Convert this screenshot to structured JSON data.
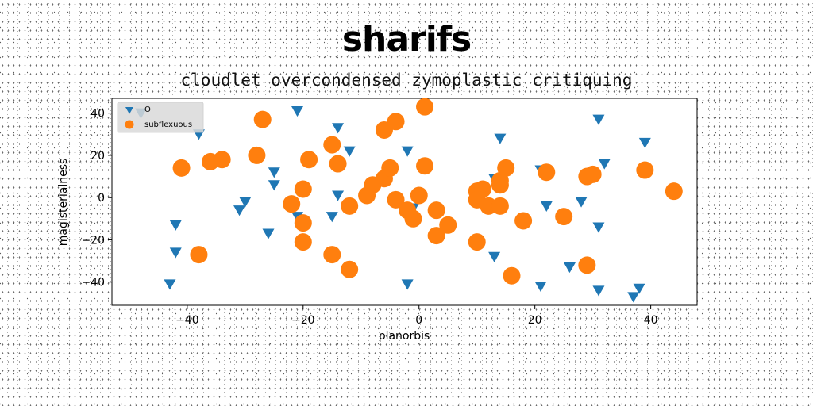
{
  "chart_data": {
    "type": "scatter",
    "title": "sharifs",
    "subtitle": "cloudlet overcondensed zymoplastic critiquing",
    "xlabel": "planorbis",
    "ylabel": "magisterialness",
    "xlim": [
      -53,
      48
    ],
    "ylim": [
      -51,
      47
    ],
    "xticks": [
      -40,
      -20,
      0,
      20,
      40
    ],
    "yticks": [
      -40,
      -20,
      0,
      20,
      40
    ],
    "grid": false,
    "legend_position": "top-left",
    "series": [
      {
        "name": "O",
        "marker": "triangle-down",
        "color": "#1f77b4",
        "points": [
          [
            -48,
            40
          ],
          [
            -38,
            30
          ],
          [
            -42,
            -13
          ],
          [
            -42,
            -26
          ],
          [
            -43,
            -41
          ],
          [
            -21,
            41
          ],
          [
            -14,
            33
          ],
          [
            -12,
            22
          ],
          [
            -25,
            12
          ],
          [
            -25,
            6
          ],
          [
            -30,
            -2
          ],
          [
            -31,
            -6
          ],
          [
            -26,
            -17
          ],
          [
            -21,
            -9
          ],
          [
            -15,
            -9
          ],
          [
            -14,
            1
          ],
          [
            -2,
            22
          ],
          [
            -2,
            -41
          ],
          [
            -1,
            -5
          ],
          [
            14,
            28
          ],
          [
            13,
            9
          ],
          [
            13,
            -28
          ],
          [
            21,
            13
          ],
          [
            22,
            -4
          ],
          [
            26,
            -33
          ],
          [
            28,
            -2
          ],
          [
            31,
            37
          ],
          [
            32,
            16
          ],
          [
            39,
            26
          ],
          [
            31,
            -14
          ],
          [
            31,
            -44
          ],
          [
            38,
            -43
          ],
          [
            37,
            -47
          ],
          [
            21,
            -42
          ]
        ]
      },
      {
        "name": "subflexuous",
        "marker": "circle",
        "color": "#ff7f0e",
        "points": [
          [
            -41,
            14
          ],
          [
            -36,
            17
          ],
          [
            -34,
            18
          ],
          [
            -38,
            -27
          ],
          [
            -27,
            37
          ],
          [
            -28,
            20
          ],
          [
            -19,
            18
          ],
          [
            -20,
            4
          ],
          [
            -22,
            -3
          ],
          [
            -20,
            -12
          ],
          [
            -20,
            -21
          ],
          [
            -15,
            25
          ],
          [
            -14,
            16
          ],
          [
            -12,
            -4
          ],
          [
            -9,
            1
          ],
          [
            -8,
            6
          ],
          [
            -6,
            32
          ],
          [
            -6,
            9
          ],
          [
            -5,
            14
          ],
          [
            -4,
            36
          ],
          [
            -4,
            -1
          ],
          [
            -2,
            -6
          ],
          [
            -1,
            -10
          ],
          [
            0,
            1
          ],
          [
            1,
            43
          ],
          [
            1,
            15
          ],
          [
            3,
            -6
          ],
          [
            3,
            -18
          ],
          [
            5,
            -13
          ],
          [
            -15,
            -27
          ],
          [
            -12,
            -34
          ],
          [
            10,
            3
          ],
          [
            10,
            -1
          ],
          [
            11,
            4
          ],
          [
            12,
            -4
          ],
          [
            10,
            -21
          ],
          [
            14,
            6
          ],
          [
            14,
            8
          ],
          [
            14,
            -4
          ],
          [
            15,
            14
          ],
          [
            16,
            -37
          ],
          [
            18,
            -11
          ],
          [
            22,
            12
          ],
          [
            25,
            -9
          ],
          [
            29,
            10
          ],
          [
            30,
            11
          ],
          [
            29,
            -32
          ],
          [
            39,
            13
          ],
          [
            44,
            3
          ]
        ]
      }
    ]
  }
}
